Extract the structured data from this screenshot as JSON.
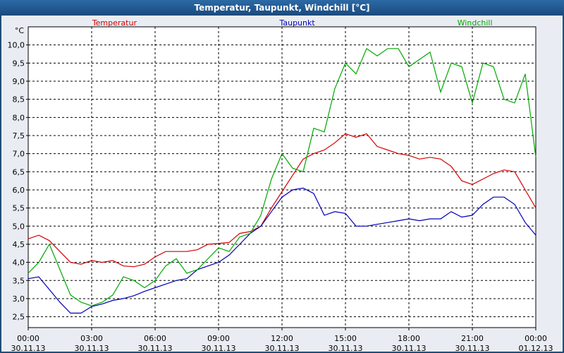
{
  "window": {
    "title": "Temperatur, Taupunkt, Windchill [°C]"
  },
  "colors": {
    "temperatur": "#d40000",
    "taupunkt": "#0000b4",
    "windchill": "#00a800",
    "background": "#e9edf3"
  },
  "chart_data": {
    "type": "line",
    "title": "Temperatur, Taupunkt, Windchill [°C]",
    "ylabel": "°C",
    "ylim": [
      2.2,
      10.5
    ],
    "yticks": [
      "2,5",
      "3,0",
      "3,5",
      "4,0",
      "4,5",
      "5,0",
      "5,5",
      "6,0",
      "6,5",
      "7,0",
      "7,5",
      "8,0",
      "8,5",
      "9,0",
      "9,5",
      "10,0"
    ],
    "xlim": [
      "30.11.13 00:00",
      "01.12.13 00:00"
    ],
    "x_tick_labels": [
      {
        "time": "00:00",
        "date": "30.11.13"
      },
      {
        "time": "03:00",
        "date": "30.11.13"
      },
      {
        "time": "06:00",
        "date": "30.11.13"
      },
      {
        "time": "09:00",
        "date": "30.11.13"
      },
      {
        "time": "12:00",
        "date": "30.11.13"
      },
      {
        "time": "15:00",
        "date": "30.11.13"
      },
      {
        "time": "18:00",
        "date": "30.11.13"
      },
      {
        "time": "21:00",
        "date": "30.11.13"
      },
      {
        "time": "00:00",
        "date": "01.12.13"
      }
    ],
    "grid": true,
    "legend_position": "top",
    "x": [
      "00:00",
      "00:30",
      "01:00",
      "01:30",
      "02:00",
      "02:30",
      "03:00",
      "03:30",
      "04:00",
      "04:30",
      "05:00",
      "05:30",
      "06:00",
      "06:30",
      "07:00",
      "07:30",
      "08:00",
      "08:30",
      "09:00",
      "09:30",
      "10:00",
      "10:30",
      "11:00",
      "11:30",
      "12:00",
      "12:30",
      "13:00",
      "13:30",
      "14:00",
      "14:30",
      "15:00",
      "15:30",
      "16:00",
      "16:30",
      "17:00",
      "17:30",
      "18:00",
      "18:30",
      "19:00",
      "19:30",
      "20:00",
      "20:30",
      "21:00",
      "21:30",
      "22:00",
      "22:30",
      "23:00",
      "23:30",
      "00:00"
    ],
    "series": [
      {
        "name": "Temperatur",
        "color": "#d40000",
        "values": [
          4.65,
          4.75,
          4.6,
          4.3,
          4.0,
          3.95,
          4.05,
          4.0,
          4.05,
          3.9,
          3.88,
          3.95,
          4.15,
          4.3,
          4.3,
          4.3,
          4.35,
          4.5,
          4.52,
          4.55,
          4.8,
          4.85,
          5.0,
          5.5,
          5.95,
          6.4,
          6.85,
          7.0,
          7.1,
          7.3,
          7.55,
          7.45,
          7.55,
          7.2,
          7.1,
          7.0,
          6.95,
          6.85,
          6.9,
          6.85,
          6.65,
          6.25,
          6.15,
          6.3,
          6.45,
          6.55,
          6.5,
          6.0,
          5.5
        ]
      },
      {
        "name": "Taupunkt",
        "color": "#0000b4",
        "values": [
          3.55,
          3.6,
          3.25,
          2.9,
          2.6,
          2.6,
          2.78,
          2.85,
          2.95,
          3.0,
          3.08,
          3.2,
          3.3,
          3.4,
          3.5,
          3.55,
          3.8,
          3.9,
          4.0,
          4.2,
          4.5,
          4.8,
          5.0,
          5.4,
          5.8,
          6.0,
          6.05,
          5.9,
          5.3,
          5.4,
          5.35,
          5.0,
          5.0,
          5.05,
          5.1,
          5.15,
          5.2,
          5.15,
          5.2,
          5.2,
          5.4,
          5.25,
          5.3,
          5.6,
          5.8,
          5.8,
          5.6,
          5.1,
          4.75
        ]
      },
      {
        "name": "Windchill",
        "color": "#00a800",
        "values": [
          3.7,
          4.0,
          4.5,
          3.8,
          3.1,
          2.9,
          2.8,
          2.9,
          3.1,
          3.6,
          3.5,
          3.3,
          3.5,
          3.9,
          4.1,
          3.7,
          3.8,
          4.1,
          4.4,
          4.3,
          4.7,
          4.8,
          5.3,
          6.3,
          7.0,
          6.6,
          6.5,
          7.7,
          7.6,
          8.8,
          9.5,
          9.2,
          9.9,
          9.7,
          9.9,
          9.9,
          9.4,
          9.6,
          9.8,
          8.7,
          9.5,
          9.4,
          8.4,
          9.5,
          9.4,
          8.5,
          8.4,
          9.2,
          6.9
        ]
      }
    ]
  }
}
